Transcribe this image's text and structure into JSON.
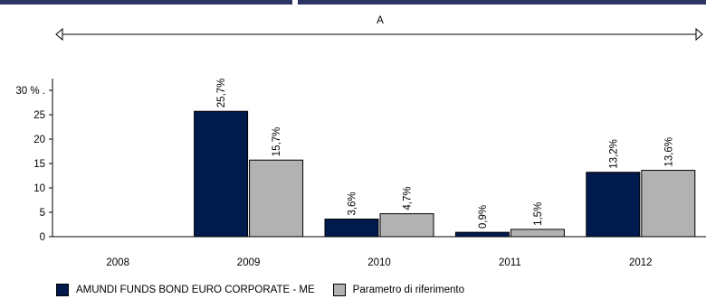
{
  "chart_data": {
    "type": "bar",
    "period_label": "A",
    "categories": [
      "2008",
      "2009",
      "2010",
      "2011",
      "2012"
    ],
    "yticks": [
      "0",
      "5",
      "10",
      "15",
      "20",
      "25",
      "30 % ."
    ],
    "ylim": [
      0,
      30
    ],
    "series": [
      {
        "name": "AMUNDI FUNDS BOND EURO CORPORATE - ME",
        "color": "#001a4d",
        "values": [
          null,
          25.7,
          3.6,
          0.9,
          13.2
        ],
        "labels": [
          "",
          "25,7%",
          "3,6%",
          "0,9%",
          "13,2%"
        ]
      },
      {
        "name": "Parametro di riferimento",
        "color": "#b2b2b2",
        "values": [
          null,
          15.7,
          4.7,
          1.5,
          13.6
        ],
        "labels": [
          "",
          "15,7%",
          "4,7%",
          "1,5%",
          "13,6%"
        ]
      }
    ],
    "grid": false,
    "legend_position": "bottom-left"
  }
}
